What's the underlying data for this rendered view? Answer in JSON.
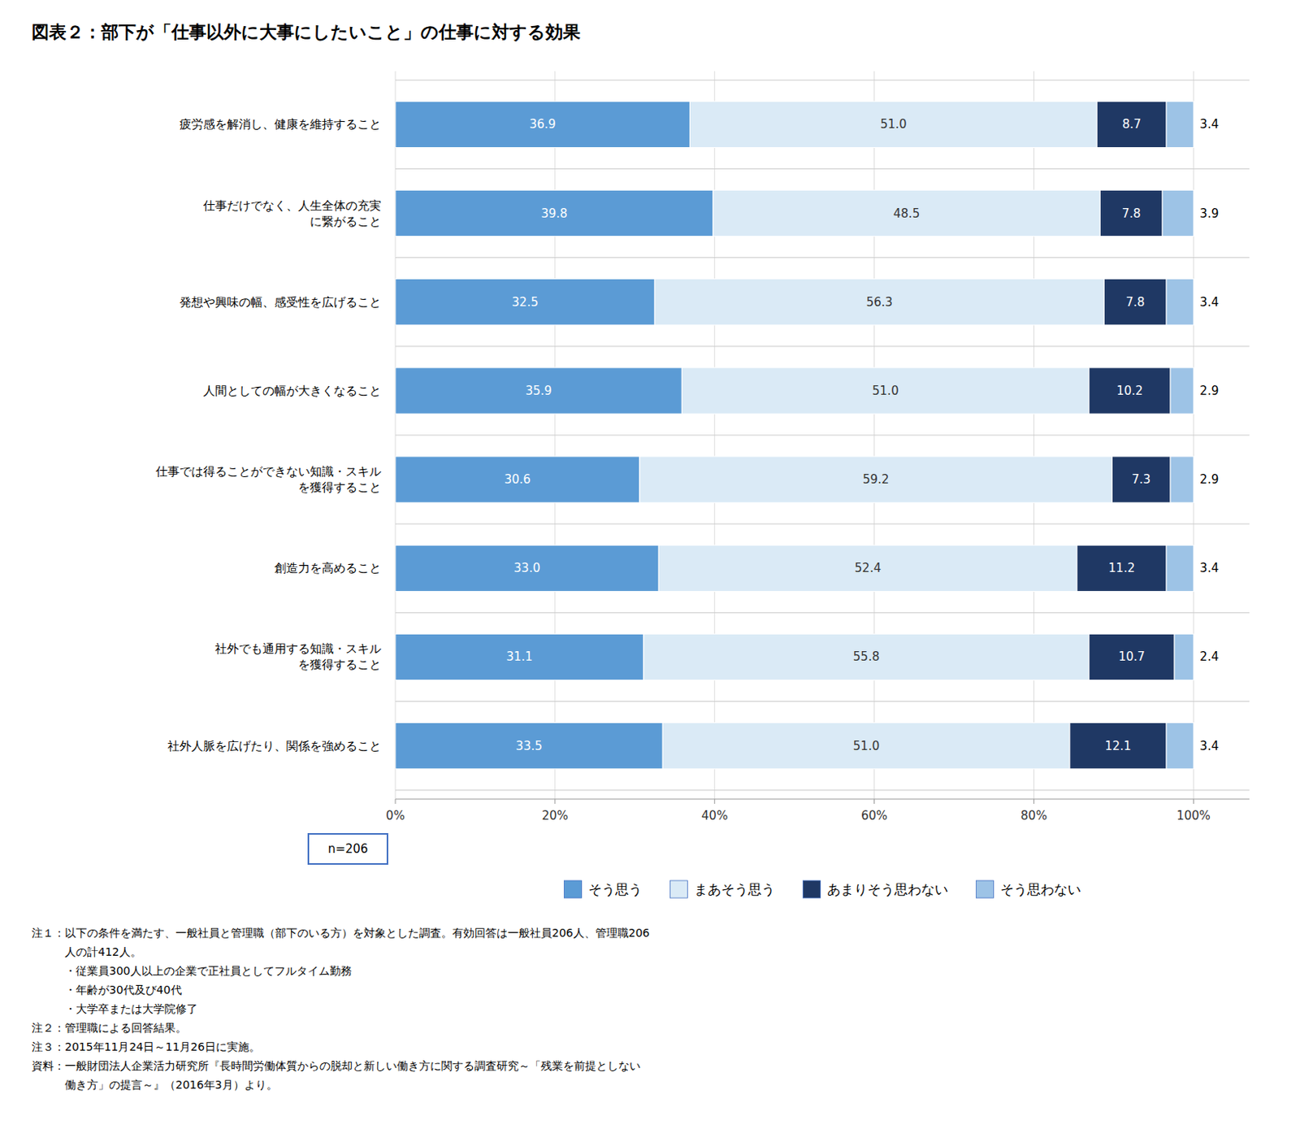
{
  "chart_data": {
    "type": "bar",
    "orientation": "horizontal",
    "stacked": true,
    "title": "図表２：部下が「仕事以外に大事にしたいこと」の仕事に対する効果",
    "categories": [
      "疲労感を解消し、健康を維持すること",
      "仕事だけでなく、人生全体の充実\nに繋がること",
      "発想や興味の幅、感受性を広げること",
      "人間としての幅が大きくなること",
      "仕事では得ることができない知識・スキル\nを獲得すること",
      "創造力を高めること",
      "社外でも通用する知識・スキル\nを獲得すること",
      "社外人脈を広げたり、関係を強めること"
    ],
    "series": [
      {
        "name": "そう思う",
        "color": "#5B9BD5",
        "values": [
          36.9,
          39.8,
          32.5,
          35.9,
          30.6,
          33.0,
          31.1,
          33.5
        ],
        "value_labels": [
          "36.9",
          "39.8",
          "32.5",
          "35.9",
          "30.6",
          "33.0",
          "31.1",
          "33.5"
        ]
      },
      {
        "name": "まあそう思う",
        "color": "#DAEAF6",
        "values": [
          51.0,
          48.5,
          56.3,
          51.0,
          59.2,
          52.4,
          55.8,
          51.0
        ],
        "value_labels": [
          "51.0",
          "48.5",
          "56.3",
          "51.0",
          "59.2",
          "52.4",
          "55.8",
          "51.0"
        ]
      },
      {
        "name": "あまりそう思わない",
        "color": "#1F3864",
        "values": [
          8.7,
          7.8,
          7.8,
          10.2,
          7.3,
          11.2,
          10.7,
          12.1
        ],
        "value_labels": [
          "8.7",
          "7.8",
          "7.8",
          "10.2",
          "7.3",
          "11.2",
          "10.7",
          "12.1"
        ]
      },
      {
        "name": "そう思わない",
        "color": "#9DC3E6",
        "values": [
          3.4,
          3.9,
          3.4,
          2.9,
          2.9,
          3.4,
          2.4,
          3.4
        ],
        "value_labels": [
          "3.4",
          "3.9",
          "3.4",
          "2.9",
          "2.9",
          "3.4",
          "2.4",
          "3.4"
        ]
      }
    ],
    "xlim": [
      0,
      107
    ],
    "xticks": [
      {
        "value": 0,
        "label": "0%"
      },
      {
        "value": 20,
        "label": "20%"
      },
      {
        "value": 40,
        "label": "40%"
      },
      {
        "value": 60,
        "label": "60%"
      },
      {
        "value": 80,
        "label": "80%"
      },
      {
        "value": 100,
        "label": "100%"
      }
    ],
    "grid": true,
    "data_labels": true,
    "legend": "bottom",
    "annotations": [
      "n=206",
      "注１：以下の条件を満たす、一般社員と管理職（部下のいる方）を対象とした調査。有効回答は一般社員206人、管理職206",
      "　　　人の計412人。",
      "　　　・従業員300人以上の企業で正社員としてフルタイム勤務",
      "　　　・年齢が30代及び40代",
      "　　　・大学卒または大学院修了",
      "注２：管理職による回答結果。",
      "注３：2015年11月24日～11月26日に実施。",
      "資料：一般財団法人企業活力研究所『長時間労働体質からの脱却と新しい働き方に関する調査研究～「残業を前提としない",
      "　　　働き方」の提言～』（2016年3月）より。"
    ]
  }
}
